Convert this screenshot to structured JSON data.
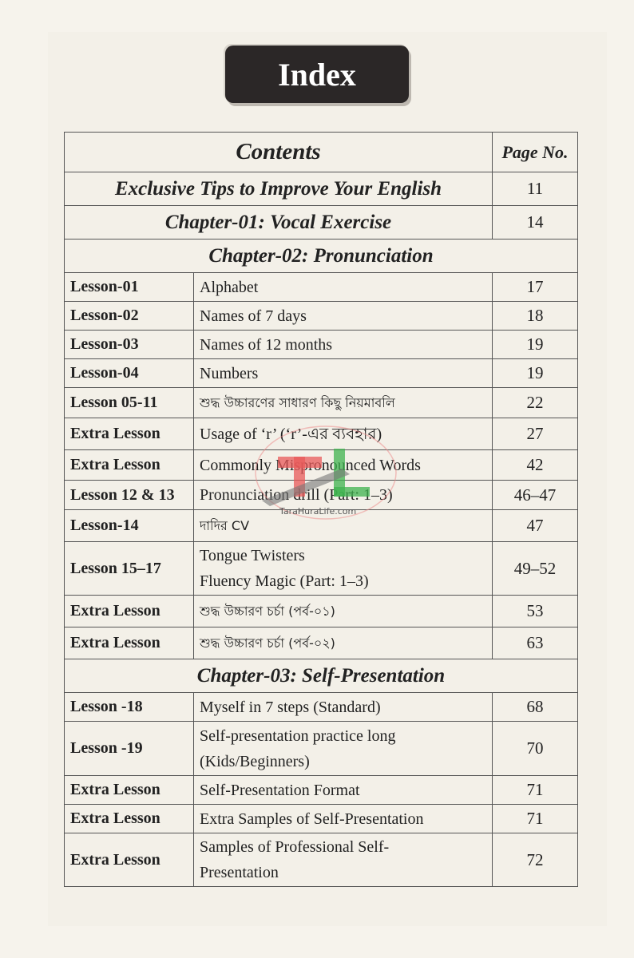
{
  "header": {
    "title": "Index"
  },
  "table": {
    "col_contents": "Contents",
    "col_page": "Page No.",
    "rows": [
      {
        "type": "chapter",
        "title": "Exclusive Tips to Improve Your English",
        "page": "11"
      },
      {
        "type": "chapter",
        "title": "Chapter-01: Vocal Exercise",
        "page": "14"
      },
      {
        "type": "section",
        "title": "Chapter-02: Pronunciation"
      },
      {
        "type": "lesson",
        "lesson": "Lesson-01",
        "title": "Alphabet",
        "page": "17"
      },
      {
        "type": "lesson",
        "lesson": "Lesson-02",
        "title": "Names of 7 days",
        "page": "18"
      },
      {
        "type": "lesson",
        "lesson": "Lesson-03",
        "title": "Names of 12 months",
        "page": "19"
      },
      {
        "type": "lesson",
        "lesson": "Lesson-04",
        "title": "Numbers",
        "page": "19"
      },
      {
        "type": "lesson",
        "lesson": "Lesson 05-11",
        "title": "শুদ্ধ উচ্চারণের সাধারণ কিছু নিয়মাবলি",
        "page": "22"
      },
      {
        "type": "lesson",
        "lesson": "Extra Lesson",
        "title": "Usage of ‘r’ (‘r’-এর ব্যবহার)",
        "page": "27"
      },
      {
        "type": "lesson",
        "lesson": "Extra Lesson",
        "title": "Commonly Mispronounced Words",
        "page": "42"
      },
      {
        "type": "lesson",
        "lesson": "Lesson 12 & 13",
        "title": "Pronunciation drill (Part: 1–3)",
        "page": "46–47"
      },
      {
        "type": "lesson",
        "lesson": "Lesson-14",
        "title": "দাদির CV",
        "page": "47"
      },
      {
        "type": "lesson2",
        "lesson": "Lesson 15–17",
        "title": "Tongue Twisters",
        "title2": "Fluency Magic (Part: 1–3)",
        "page": "49–52"
      },
      {
        "type": "lesson",
        "lesson": "Extra Lesson",
        "title": "শুদ্ধ উচ্চারণ চর্চা (পর্ব-০১)",
        "page": "53"
      },
      {
        "type": "lesson",
        "lesson": "Extra Lesson",
        "title": "শুদ্ধ উচ্চারণ চর্চা (পর্ব-০২)",
        "page": "63"
      },
      {
        "type": "section",
        "title": "Chapter-03: Self-Presentation"
      },
      {
        "type": "lesson",
        "lesson": "Lesson -18",
        "title": "Myself in 7 steps (Standard)",
        "page": "68"
      },
      {
        "type": "lesson2",
        "lesson": "Lesson -19",
        "title": "Self-presentation practice long",
        "title2": "(Kids/Beginners)",
        "page": "70"
      },
      {
        "type": "lesson",
        "lesson": "Extra Lesson",
        "title": "Self-Presentation Format",
        "page": "71"
      },
      {
        "type": "lesson",
        "lesson": "Extra Lesson",
        "title": "Extra Samples of Self-Presentation",
        "page": "71"
      },
      {
        "type": "lesson2",
        "lesson": "Extra Lesson",
        "title": "Samples of Professional Self-",
        "title2": "Presentation",
        "page": "72"
      }
    ]
  },
  "watermark": {
    "text": "TaraHuraLife.com"
  }
}
